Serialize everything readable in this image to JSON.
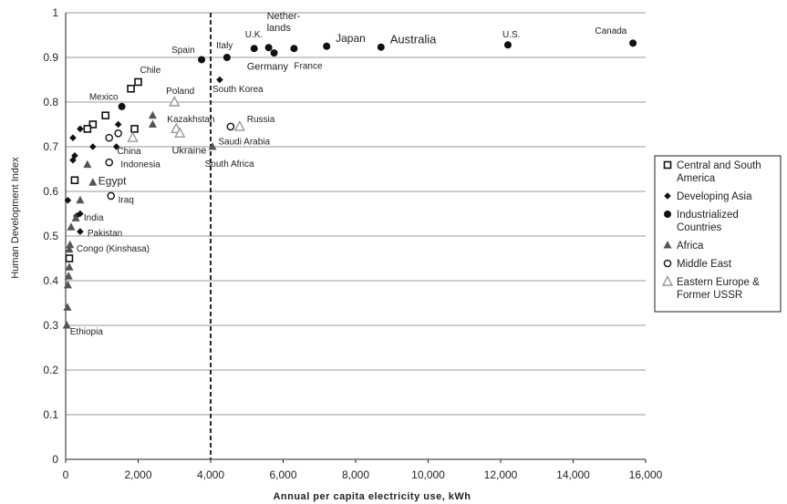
{
  "chart_data": {
    "type": "scatter",
    "title": "",
    "xlabel": "Annual per capita electricity use, kWh",
    "ylabel": "Human Development Index",
    "xlim": [
      0,
      16000
    ],
    "ylim": [
      0,
      1
    ],
    "xticks": [
      "0",
      "2,000",
      "4,000",
      "6,000",
      "8,000",
      "10,000",
      "12,000",
      "14,000",
      "16,000"
    ],
    "yticks": [
      "0",
      "0.1",
      "0.2",
      "0.3",
      "0.4",
      "0.5",
      "0.6",
      "0.7",
      "0.8",
      "0.9",
      "1"
    ],
    "grid": "horizontal",
    "reference_line": {
      "x": 4000,
      "style": "dashed"
    },
    "legend_position": "right",
    "colors": {
      "marker": "#111111",
      "open_triangle": "#999999",
      "grid": "#777777"
    },
    "series": [
      {
        "name": "Central and South America",
        "marker": "open-square",
        "points": [
          {
            "x": 2000,
            "y": 0.845,
            "label": "Chile"
          },
          {
            "x": 1800,
            "y": 0.83,
            "label": ""
          },
          {
            "x": 1100,
            "y": 0.77,
            "label": ""
          },
          {
            "x": 750,
            "y": 0.75,
            "label": ""
          },
          {
            "x": 600,
            "y": 0.74,
            "label": "Mexico"
          },
          {
            "x": 1900,
            "y": 0.74,
            "label": ""
          },
          {
            "x": 250,
            "y": 0.625,
            "label": ""
          },
          {
            "x": 100,
            "y": 0.45,
            "label": ""
          }
        ]
      },
      {
        "name": "Developing Asia",
        "marker": "filled-diamond",
        "points": [
          {
            "x": 400,
            "y": 0.74,
            "label": ""
          },
          {
            "x": 200,
            "y": 0.72,
            "label": ""
          },
          {
            "x": 750,
            "y": 0.7,
            "label": ""
          },
          {
            "x": 1450,
            "y": 0.75,
            "label": ""
          },
          {
            "x": 1400,
            "y": 0.7,
            "label": ""
          },
          {
            "x": 250,
            "y": 0.68,
            "label": ""
          },
          {
            "x": 200,
            "y": 0.67,
            "label": ""
          },
          {
            "x": 60,
            "y": 0.58,
            "label": ""
          },
          {
            "x": 400,
            "y": 0.55,
            "label": ""
          },
          {
            "x": 300,
            "y": 0.545,
            "label": "India"
          },
          {
            "x": 400,
            "y": 0.51,
            "label": "Pakistan"
          },
          {
            "x": 4250,
            "y": 0.85,
            "label": "South Korea"
          }
        ]
      },
      {
        "name": "Industrialized Countries",
        "marker": "filled-circle",
        "points": [
          {
            "x": 3750,
            "y": 0.895,
            "label": "Spain"
          },
          {
            "x": 4450,
            "y": 0.9,
            "label": "Italy"
          },
          {
            "x": 5200,
            "y": 0.92,
            "label": "U.K."
          },
          {
            "x": 5600,
            "y": 0.922,
            "label": "Netherlands"
          },
          {
            "x": 5750,
            "y": 0.91,
            "label": "Germany"
          },
          {
            "x": 6300,
            "y": 0.92,
            "label": "France"
          },
          {
            "x": 7200,
            "y": 0.925,
            "label": "Japan"
          },
          {
            "x": 8700,
            "y": 0.923,
            "label": "Australia"
          },
          {
            "x": 12200,
            "y": 0.928,
            "label": "U.S."
          },
          {
            "x": 15650,
            "y": 0.932,
            "label": "Canada"
          },
          {
            "x": 1550,
            "y": 0.79,
            "label": ""
          }
        ]
      },
      {
        "name": "Africa",
        "marker": "filled-triangle",
        "points": [
          {
            "x": 2400,
            "y": 0.77,
            "label": ""
          },
          {
            "x": 2400,
            "y": 0.75,
            "label": ""
          },
          {
            "x": 600,
            "y": 0.66,
            "label": ""
          },
          {
            "x": 750,
            "y": 0.62,
            "label": "Egypt"
          },
          {
            "x": 400,
            "y": 0.58,
            "label": ""
          },
          {
            "x": 280,
            "y": 0.54,
            "label": ""
          },
          {
            "x": 150,
            "y": 0.52,
            "label": ""
          },
          {
            "x": 120,
            "y": 0.48,
            "label": "Congo (Kinshasa)"
          },
          {
            "x": 100,
            "y": 0.47,
            "label": ""
          },
          {
            "x": 100,
            "y": 0.43,
            "label": ""
          },
          {
            "x": 80,
            "y": 0.41,
            "label": ""
          },
          {
            "x": 60,
            "y": 0.39,
            "label": ""
          },
          {
            "x": 50,
            "y": 0.34,
            "label": ""
          },
          {
            "x": 30,
            "y": 0.3,
            "label": "Ethiopia"
          },
          {
            "x": 4050,
            "y": 0.7,
            "label": "South Africa"
          }
        ]
      },
      {
        "name": "Middle East",
        "marker": "open-circle",
        "points": [
          {
            "x": 1200,
            "y": 0.72,
            "label": ""
          },
          {
            "x": 1450,
            "y": 0.73,
            "label": ""
          },
          {
            "x": 1200,
            "y": 0.665,
            "label": "Indonesia"
          },
          {
            "x": 1250,
            "y": 0.59,
            "label": "Iraq"
          },
          {
            "x": 4550,
            "y": 0.745,
            "label": "Saudi Arabia"
          }
        ]
      },
      {
        "name": "Eastern Europe & Former USSR",
        "marker": "open-triangle",
        "points": [
          {
            "x": 3000,
            "y": 0.8,
            "label": "Poland"
          },
          {
            "x": 3050,
            "y": 0.74,
            "label": "Kazakhstan"
          },
          {
            "x": 3150,
            "y": 0.73,
            "label": "Ukraine"
          },
          {
            "x": 1850,
            "y": 0.72,
            "label": ""
          },
          {
            "x": 4800,
            "y": 0.745,
            "label": "Russia"
          }
        ]
      }
    ],
    "text_labels": [
      {
        "text": "Chile",
        "x": 2050,
        "y": 0.865,
        "size": 10
      },
      {
        "text": "Mexico",
        "x": 650,
        "y": 0.805,
        "size": 10
      },
      {
        "text": "Poland",
        "x": 2770,
        "y": 0.818,
        "size": 10
      },
      {
        "text": "South Korea",
        "x": 4050,
        "y": 0.822,
        "size": 10
      },
      {
        "text": "Kazakhstan",
        "x": 2800,
        "y": 0.755,
        "size": 10
      },
      {
        "text": "Russia",
        "x": 5000,
        "y": 0.755,
        "size": 10
      },
      {
        "text": "China",
        "x": 1420,
        "y": 0.684,
        "size": 10
      },
      {
        "text": "Ukraine",
        "x": 2930,
        "y": 0.685,
        "size": 11
      },
      {
        "text": "Saudi Arabia",
        "x": 4210,
        "y": 0.705,
        "size": 10
      },
      {
        "text": "Indonesia",
        "x": 1520,
        "y": 0.654,
        "size": 10
      },
      {
        "text": "South Africa",
        "x": 3840,
        "y": 0.655,
        "size": 10
      },
      {
        "text": "Egypt",
        "x": 900,
        "y": 0.615,
        "size": 12
      },
      {
        "text": "Iraq",
        "x": 1450,
        "y": 0.575,
        "size": 10
      },
      {
        "text": "India",
        "x": 500,
        "y": 0.535,
        "size": 10
      },
      {
        "text": "Pakistan",
        "x": 600,
        "y": 0.5,
        "size": 10
      },
      {
        "text": "Congo (Kinshasa)",
        "x": 300,
        "y": 0.465,
        "size": 10
      },
      {
        "text": "Ethiopia",
        "x": 120,
        "y": 0.28,
        "size": 10
      },
      {
        "text": "Spain",
        "x": 2920,
        "y": 0.91,
        "size": 10
      },
      {
        "text": "Italy",
        "x": 4150,
        "y": 0.92,
        "size": 10
      },
      {
        "text": "U.K.",
        "x": 4950,
        "y": 0.945,
        "size": 10
      },
      {
        "text": "Netherlands",
        "x": 5550,
        "y": 0.986,
        "size": 11,
        "lines": [
          "Nether-",
          "lands"
        ]
      },
      {
        "text": "Germany",
        "x": 5000,
        "y": 0.872,
        "size": 11
      },
      {
        "text": "France",
        "x": 6300,
        "y": 0.875,
        "size": 10
      },
      {
        "text": "Japan",
        "x": 7450,
        "y": 0.935,
        "size": 12
      },
      {
        "text": "Australia",
        "x": 8950,
        "y": 0.932,
        "size": 13
      },
      {
        "text": "U.S.",
        "x": 12050,
        "y": 0.945,
        "size": 10
      },
      {
        "text": "Canada",
        "x": 14600,
        "y": 0.953,
        "size": 10
      }
    ],
    "legend": [
      {
        "marker": "open-square",
        "lines": [
          "Central and South",
          "America"
        ]
      },
      {
        "marker": "filled-diamond",
        "lines": [
          "Developing Asia"
        ]
      },
      {
        "marker": "filled-circle",
        "lines": [
          "Industrialized",
          "Countries"
        ]
      },
      {
        "marker": "filled-triangle",
        "lines": [
          "Africa"
        ]
      },
      {
        "marker": "open-circle",
        "lines": [
          "Middle East"
        ]
      },
      {
        "marker": "open-triangle",
        "lines": [
          "Eastern Europe &",
          "Former USSR"
        ]
      }
    ]
  }
}
